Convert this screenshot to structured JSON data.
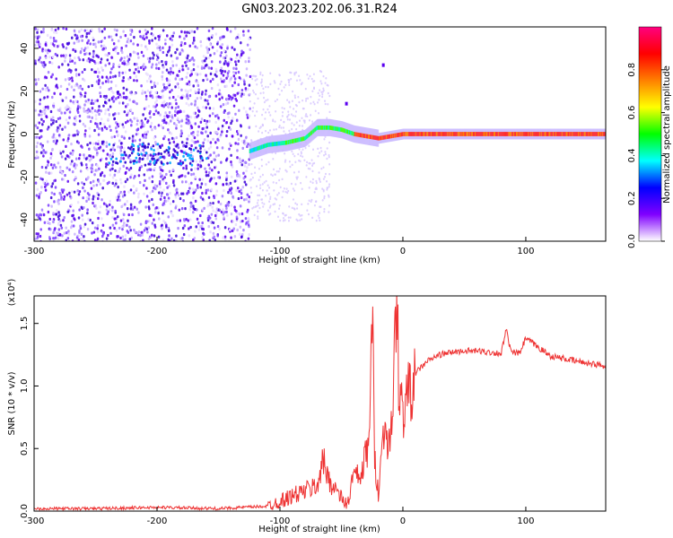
{
  "title": "GN03.2023.202.06.31.R24",
  "chart_data": [
    {
      "type": "heatmap",
      "xlabel": "Height of straight line (km)",
      "ylabel": "Frequency (Hz)",
      "xlim": [
        -300,
        165
      ],
      "ylim": [
        -50,
        50
      ],
      "xticks": [
        -300,
        -200,
        -100,
        0,
        100
      ],
      "yticks": [
        -40,
        -20,
        0,
        20,
        40
      ],
      "grid": false,
      "colorbar": {
        "label": "Normalized spectral amplitude",
        "range": [
          0.0,
          1.0
        ],
        "ticks": [
          0.0,
          0.2,
          0.4,
          0.6,
          0.8
        ],
        "tick_labels": [
          "0.0",
          "0.2",
          "0.4",
          "0.6",
          "0.8"
        ],
        "colormap": [
          "#ffffff",
          "#8000ff",
          "#0000ff",
          "#00ffff",
          "#00ff00",
          "#ffff00",
          "#ff8000",
          "#ff0000",
          "#ff0080"
        ]
      },
      "ridge": {
        "x": [
          -125,
          -110,
          -95,
          -80,
          -70,
          -60,
          -50,
          -40,
          -30,
          -20,
          -10,
          0,
          50,
          100,
          165
        ],
        "y": [
          -8,
          -5,
          -4,
          -2,
          3,
          3,
          2,
          0,
          -1,
          -2,
          -1,
          0,
          0,
          0,
          0
        ]
      }
    },
    {
      "type": "line",
      "xlabel": "Height of straight line (km)",
      "ylabel": "SNR (10 * v/v)",
      "y_multiplier": "(x10⁴)",
      "xlim": [
        -300,
        165
      ],
      "ylim": [
        0,
        1.72
      ],
      "xticks": [
        -300,
        -200,
        -100,
        0,
        100
      ],
      "yticks": [
        0.0,
        0.5,
        1.0,
        1.5
      ],
      "ytick_labels": [
        "0.0",
        "0.5",
        "1.0",
        "1.5"
      ],
      "grid": false,
      "series_color": "#ee3333",
      "x": [
        -300,
        -250,
        -200,
        -150,
        -110,
        -100,
        -90,
        -80,
        -70,
        -65,
        -60,
        -55,
        -50,
        -45,
        -40,
        -35,
        -30,
        -27,
        -25,
        -23,
        -20,
        -15,
        -10,
        -7,
        -5,
        -3,
        0,
        5,
        10,
        20,
        30,
        40,
        50,
        60,
        70,
        80,
        84,
        88,
        95,
        100,
        120,
        140,
        165
      ],
      "y": [
        0.02,
        0.02,
        0.03,
        0.02,
        0.04,
        0.08,
        0.12,
        0.16,
        0.2,
        0.4,
        0.25,
        0.18,
        0.1,
        0.05,
        0.3,
        0.25,
        0.45,
        0.6,
        1.65,
        0.45,
        0.15,
        0.7,
        0.5,
        1.2,
        1.75,
        0.9,
        0.8,
        0.95,
        1.1,
        1.2,
        1.25,
        1.27,
        1.28,
        1.28,
        1.27,
        1.26,
        1.45,
        1.27,
        1.26,
        1.38,
        1.24,
        1.2,
        1.16
      ]
    }
  ]
}
